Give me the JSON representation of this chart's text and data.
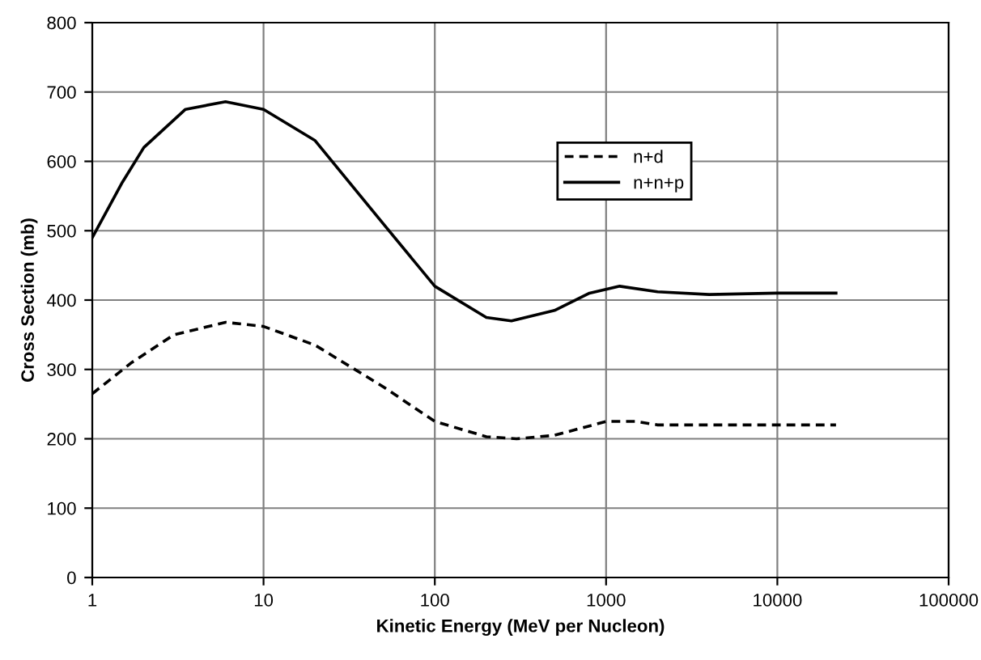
{
  "chart_data": {
    "type": "line",
    "xlabel": "Kinetic Energy (MeV per Nucleon)",
    "ylabel": "Cross Section (mb)",
    "log": "x",
    "xlim": [
      1,
      100000
    ],
    "xticks": [
      1,
      10,
      100,
      1000,
      10000,
      100000
    ],
    "ylim": [
      0,
      800
    ],
    "yticks": [
      0,
      100,
      200,
      300,
      400,
      500,
      600,
      700,
      800
    ],
    "grid": true,
    "legend": "top right",
    "marker": "none",
    "series": [
      {
        "name": "n+d",
        "color": "#000000",
        "line_style": "dashed",
        "x": [
          1,
          1.7,
          3,
          6,
          10,
          20,
          50,
          100,
          200,
          300,
          500,
          1000,
          1500,
          2000,
          5000,
          22000
        ],
        "values": [
          265,
          310,
          350,
          368,
          362,
          335,
          275,
          225,
          203,
          200,
          205,
          225,
          225,
          220,
          220,
          220
        ]
      },
      {
        "name": "n+n+p",
        "color": "#000000",
        "line_style": "solid",
        "x": [
          1,
          1.5,
          2,
          3.5,
          6,
          10,
          20,
          50,
          100,
          200,
          280,
          500,
          800,
          1200,
          2000,
          4000,
          10000,
          22000
        ],
        "values": [
          490,
          570,
          620,
          675,
          686,
          675,
          630,
          510,
          420,
          375,
          370,
          385,
          410,
          420,
          412,
          408,
          410,
          410
        ]
      }
    ]
  }
}
